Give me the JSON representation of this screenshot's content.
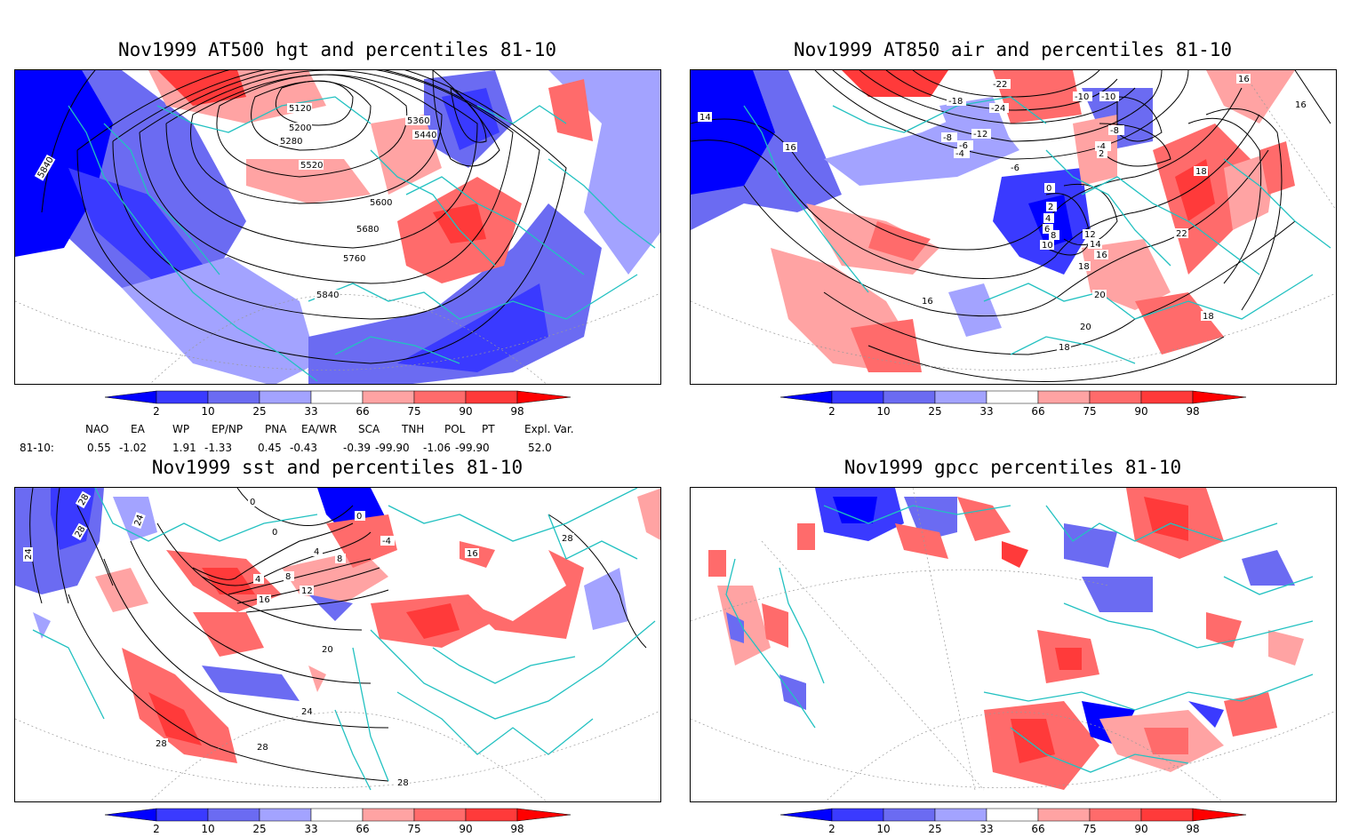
{
  "colors": {
    "deep_blue": "#0000ff",
    "blue_2_10": "#3a3aff",
    "blue_10_25": "#6b6bf2",
    "blue_25_33": "#a3a3ff",
    "red_66_75": "#ffa3a3",
    "red_75_90": "#ff6b6b",
    "red_90_98": "#ff3a3a",
    "deep_red": "#ff0000",
    "coast": "#22c1c1",
    "contour": "#000000"
  },
  "colorbar": {
    "labels": [
      "2",
      "10",
      "25",
      "33",
      "66",
      "75",
      "90",
      "98"
    ]
  },
  "panels": [
    {
      "title": "Nov1999 AT500 hgt and percentiles 81-10",
      "contour_labels": [
        "5120",
        "5200",
        "5280",
        "5360",
        "5440",
        "5520",
        "5600",
        "5680",
        "5760",
        "5840",
        "5840"
      ]
    },
    {
      "title": "Nov1999 AT850 air and percentiles 81-10",
      "contour_labels": [
        "14",
        "16",
        "16",
        "16",
        "-18",
        "-22",
        "-24",
        "-12",
        "-8",
        "-6",
        "-4",
        "-10",
        "-10",
        "-8",
        "-4",
        "2",
        "0",
        "2",
        "4",
        "6",
        "8",
        "10",
        "12",
        "14",
        "16",
        "18",
        "18",
        "20",
        "20",
        "18",
        "16",
        "22",
        "18",
        "-6"
      ]
    },
    {
      "title": "Nov1999 sst and percentiles 81-10",
      "contour_labels": [
        "24",
        "24",
        "28",
        "28",
        "0",
        "0",
        "0",
        "4",
        "4",
        "8",
        "8",
        "12",
        "16",
        "20",
        "24",
        "28",
        "28",
        "28",
        "28",
        "16",
        "-4"
      ]
    },
    {
      "title": "Nov1999 gpcc percentiles 81-10",
      "contour_labels": []
    }
  ],
  "indices": {
    "header": [
      "NAO",
      "EA",
      "WP",
      "EP/NP",
      "PNA",
      "EA/WR",
      "SCA",
      "TNH",
      "POL",
      "PT",
      "Expl. Var."
    ],
    "row_label": "81-10:",
    "values": [
      "0.55",
      "-1.02",
      "1.91",
      "-1.33",
      "0.45",
      "-0.43",
      "-0.39",
      "-99.90",
      "-1.06",
      "-99.90",
      "52.0"
    ]
  }
}
